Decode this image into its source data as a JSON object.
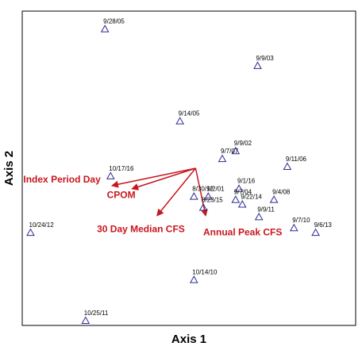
{
  "chart_data": {
    "type": "scatter",
    "xlabel": "Axis 1",
    "ylabel": "Axis 2",
    "xlim": [
      0,
      100
    ],
    "ylim": [
      0,
      100
    ],
    "grid": false,
    "colors": {
      "points": "#2b2b8f",
      "vectors": "#c8161d",
      "frame": "#000000"
    },
    "points": [
      {
        "label": "9/28/05",
        "x": 24.8,
        "y": 94.3
      },
      {
        "label": "9/9/03",
        "x": 70.6,
        "y": 82.6
      },
      {
        "label": "9/14/05",
        "x": 47.3,
        "y": 65.0
      },
      {
        "label": "9/9/02",
        "x": 64.0,
        "y": 55.5
      },
      {
        "label": "9/7/07",
        "x": 60.0,
        "y": 53.0
      },
      {
        "label": "9/11/06",
        "x": 79.5,
        "y": 50.5
      },
      {
        "label": "10/17/16",
        "x": 26.5,
        "y": 47.5
      },
      {
        "label": "9/1/16",
        "x": 65.0,
        "y": 43.5
      },
      {
        "label": "8/30/12",
        "x": 51.5,
        "y": 41.0
      },
      {
        "label": "9/2/01",
        "x": 55.8,
        "y": 41.0
      },
      {
        "label": "9/7/04",
        "x": 64.0,
        "y": 40.0
      },
      {
        "label": "9/4/08",
        "x": 75.5,
        "y": 40.0
      },
      {
        "label": "9/22/14",
        "x": 66.0,
        "y": 38.5
      },
      {
        "label": "8/23/15",
        "x": 54.3,
        "y": 37.5
      },
      {
        "label": "9/9/11",
        "x": 71.0,
        "y": 34.5
      },
      {
        "label": "9/7/10",
        "x": 81.5,
        "y": 31.0
      },
      {
        "label": "9/6/13",
        "x": 88.0,
        "y": 29.5
      },
      {
        "label": "10/24/12",
        "x": 2.5,
        "y": 29.5
      },
      {
        "label": "10/14/10",
        "x": 51.5,
        "y": 14.5
      },
      {
        "label": "10/25/11",
        "x": 19.0,
        "y": 1.5
      }
    ],
    "vector_origin": {
      "x": 52.0,
      "y": 50.0
    },
    "vectors": [
      {
        "label": "Index Period Day",
        "x": 27.0,
        "y": 44.5
      },
      {
        "label": "CPOM",
        "x": 33.0,
        "y": 43.5
      },
      {
        "label": "30 Day Median CFS",
        "x": 40.5,
        "y": 35.0
      },
      {
        "label": "Annual Peak CFS",
        "x": 55.0,
        "y": 35.0
      }
    ]
  }
}
